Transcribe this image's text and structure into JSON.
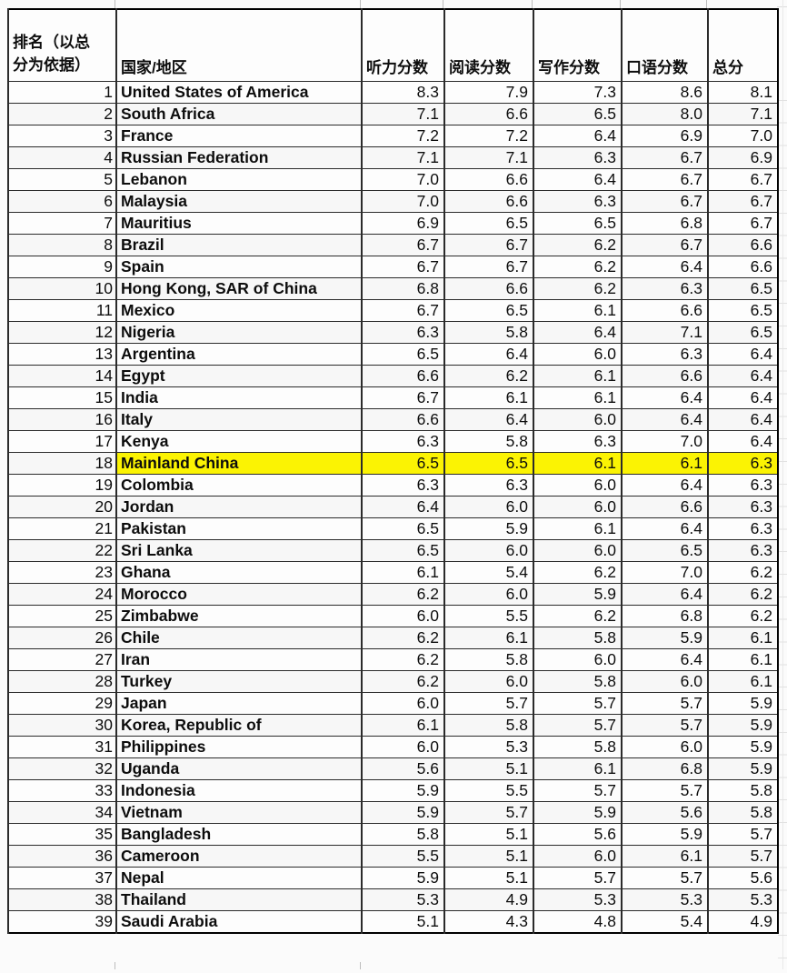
{
  "page": {
    "background": "#fbfbfb"
  },
  "table": {
    "highlight_color": "#fbf303",
    "headers": {
      "rank": "排名（以总分为依据）",
      "country": "国家/地区",
      "listening": "听力分数",
      "reading": "阅读分数",
      "writing": "写作分数",
      "speaking": "口语分数",
      "total": "总分"
    },
    "rows": [
      {
        "rank": "1",
        "country": "United States of America",
        "listening": "8.3",
        "reading": "7.9",
        "writing": "7.3",
        "speaking": "8.6",
        "total": "8.1"
      },
      {
        "rank": "2",
        "country": "South Africa",
        "listening": "7.1",
        "reading": "6.6",
        "writing": "6.5",
        "speaking": "8.0",
        "total": "7.1"
      },
      {
        "rank": "3",
        "country": "France",
        "listening": "7.2",
        "reading": "7.2",
        "writing": "6.4",
        "speaking": "6.9",
        "total": "7.0"
      },
      {
        "rank": "4",
        "country": "Russian Federation",
        "listening": "7.1",
        "reading": "7.1",
        "writing": "6.3",
        "speaking": "6.7",
        "total": "6.9"
      },
      {
        "rank": "5",
        "country": "Lebanon",
        "listening": "7.0",
        "reading": "6.6",
        "writing": "6.4",
        "speaking": "6.7",
        "total": "6.7"
      },
      {
        "rank": "6",
        "country": "Malaysia",
        "listening": "7.0",
        "reading": "6.6",
        "writing": "6.3",
        "speaking": "6.7",
        "total": "6.7"
      },
      {
        "rank": "7",
        "country": "Mauritius",
        "listening": "6.9",
        "reading": "6.5",
        "writing": "6.5",
        "speaking": "6.8",
        "total": "6.7"
      },
      {
        "rank": "8",
        "country": "Brazil",
        "listening": "6.7",
        "reading": "6.7",
        "writing": "6.2",
        "speaking": "6.7",
        "total": "6.6"
      },
      {
        "rank": "9",
        "country": "Spain",
        "listening": "6.7",
        "reading": "6.7",
        "writing": "6.2",
        "speaking": "6.4",
        "total": "6.6"
      },
      {
        "rank": "10",
        "country": "Hong Kong, SAR of China",
        "listening": "6.8",
        "reading": "6.6",
        "writing": "6.2",
        "speaking": "6.3",
        "total": "6.5"
      },
      {
        "rank": "11",
        "country": "Mexico",
        "listening": "6.7",
        "reading": "6.5",
        "writing": "6.1",
        "speaking": "6.6",
        "total": "6.5"
      },
      {
        "rank": "12",
        "country": "Nigeria",
        "listening": "6.3",
        "reading": "5.8",
        "writing": "6.4",
        "speaking": "7.1",
        "total": "6.5"
      },
      {
        "rank": "13",
        "country": "Argentina",
        "listening": "6.5",
        "reading": "6.4",
        "writing": "6.0",
        "speaking": "6.3",
        "total": "6.4"
      },
      {
        "rank": "14",
        "country": "Egypt",
        "listening": "6.6",
        "reading": "6.2",
        "writing": "6.1",
        "speaking": "6.6",
        "total": "6.4"
      },
      {
        "rank": "15",
        "country": "India",
        "listening": "6.7",
        "reading": "6.1",
        "writing": "6.1",
        "speaking": "6.4",
        "total": "6.4"
      },
      {
        "rank": "16",
        "country": "Italy",
        "listening": "6.6",
        "reading": "6.4",
        "writing": "6.0",
        "speaking": "6.4",
        "total": "6.4"
      },
      {
        "rank": "17",
        "country": "Kenya",
        "listening": "6.3",
        "reading": "5.8",
        "writing": "6.3",
        "speaking": "7.0",
        "total": "6.4"
      },
      {
        "rank": "18",
        "country": "Mainland China",
        "listening": "6.5",
        "reading": "6.5",
        "writing": "6.1",
        "speaking": "6.1",
        "total": "6.3",
        "highlight": true
      },
      {
        "rank": "19",
        "country": "Colombia",
        "listening": "6.3",
        "reading": "6.3",
        "writing": "6.0",
        "speaking": "6.4",
        "total": "6.3"
      },
      {
        "rank": "20",
        "country": "Jordan",
        "listening": "6.4",
        "reading": "6.0",
        "writing": "6.0",
        "speaking": "6.6",
        "total": "6.3"
      },
      {
        "rank": "21",
        "country": "Pakistan",
        "listening": "6.5",
        "reading": "5.9",
        "writing": "6.1",
        "speaking": "6.4",
        "total": "6.3"
      },
      {
        "rank": "22",
        "country": "Sri Lanka",
        "listening": "6.5",
        "reading": "6.0",
        "writing": "6.0",
        "speaking": "6.5",
        "total": "6.3"
      },
      {
        "rank": "23",
        "country": "Ghana",
        "listening": "6.1",
        "reading": "5.4",
        "writing": "6.2",
        "speaking": "7.0",
        "total": "6.2"
      },
      {
        "rank": "24",
        "country": "Morocco",
        "listening": "6.2",
        "reading": "6.0",
        "writing": "5.9",
        "speaking": "6.4",
        "total": "6.2"
      },
      {
        "rank": "25",
        "country": "Zimbabwe",
        "listening": "6.0",
        "reading": "5.5",
        "writing": "6.2",
        "speaking": "6.8",
        "total": "6.2"
      },
      {
        "rank": "26",
        "country": "Chile",
        "listening": "6.2",
        "reading": "6.1",
        "writing": "5.8",
        "speaking": "5.9",
        "total": "6.1"
      },
      {
        "rank": "27",
        "country": "Iran",
        "listening": "6.2",
        "reading": "5.8",
        "writing": "6.0",
        "speaking": "6.4",
        "total": "6.1"
      },
      {
        "rank": "28",
        "country": "Turkey",
        "listening": "6.2",
        "reading": "6.0",
        "writing": "5.8",
        "speaking": "6.0",
        "total": "6.1"
      },
      {
        "rank": "29",
        "country": "Japan",
        "listening": "6.0",
        "reading": "5.7",
        "writing": "5.7",
        "speaking": "5.7",
        "total": "5.9"
      },
      {
        "rank": "30",
        "country": "Korea, Republic of",
        "listening": "6.1",
        "reading": "5.8",
        "writing": "5.7",
        "speaking": "5.7",
        "total": "5.9"
      },
      {
        "rank": "31",
        "country": "Philippines",
        "listening": "6.0",
        "reading": "5.3",
        "writing": "5.8",
        "speaking": "6.0",
        "total": "5.9"
      },
      {
        "rank": "32",
        "country": "Uganda",
        "listening": "5.6",
        "reading": "5.1",
        "writing": "6.1",
        "speaking": "6.8",
        "total": "5.9"
      },
      {
        "rank": "33",
        "country": "Indonesia",
        "listening": "5.9",
        "reading": "5.5",
        "writing": "5.7",
        "speaking": "5.7",
        "total": "5.8"
      },
      {
        "rank": "34",
        "country": "Vietnam",
        "listening": "5.9",
        "reading": "5.7",
        "writing": "5.9",
        "speaking": "5.6",
        "total": "5.8"
      },
      {
        "rank": "35",
        "country": "Bangladesh",
        "listening": "5.8",
        "reading": "5.1",
        "writing": "5.6",
        "speaking": "5.9",
        "total": "5.7"
      },
      {
        "rank": "36",
        "country": "Cameroon",
        "listening": "5.5",
        "reading": "5.1",
        "writing": "6.0",
        "speaking": "6.1",
        "total": "5.7"
      },
      {
        "rank": "37",
        "country": "Nepal",
        "listening": "5.9",
        "reading": "5.1",
        "writing": "5.7",
        "speaking": "5.7",
        "total": "5.6"
      },
      {
        "rank": "38",
        "country": "Thailand",
        "listening": "5.3",
        "reading": "4.9",
        "writing": "5.3",
        "speaking": "5.3",
        "total": "5.3"
      },
      {
        "rank": "39",
        "country": "Saudi Arabia",
        "listening": "5.1",
        "reading": "4.3",
        "writing": "4.8",
        "speaking": "5.4",
        "total": "4.9"
      }
    ]
  }
}
